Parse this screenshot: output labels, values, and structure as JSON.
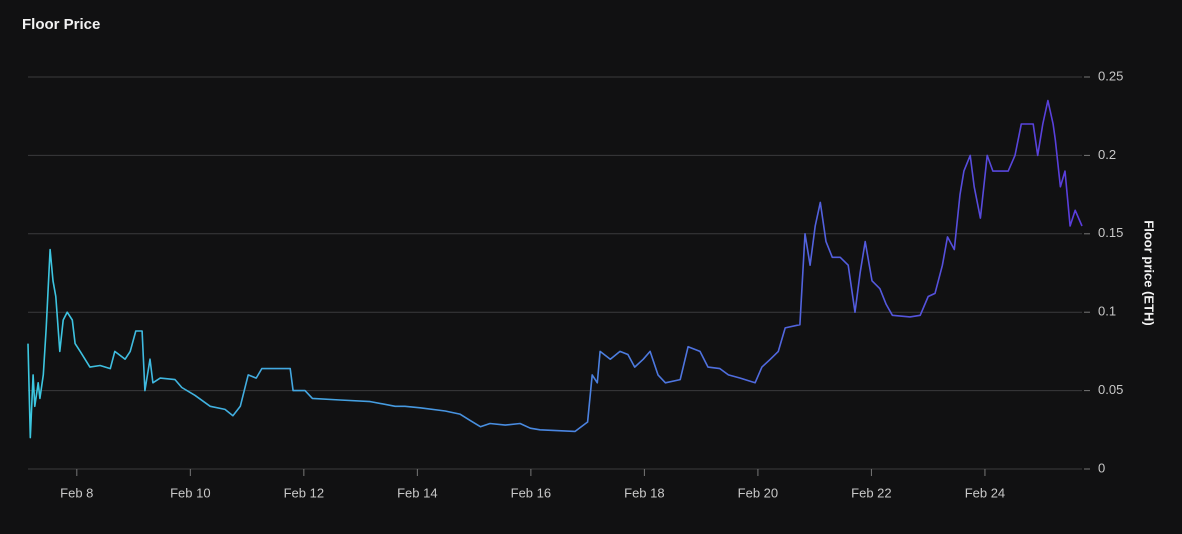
{
  "chart_data": {
    "type": "line",
    "title": "Floor Price",
    "ylabel": "Floor price (ETH)",
    "x": [
      7.14,
      7.18,
      7.23,
      7.26,
      7.32,
      7.35,
      7.41,
      7.46,
      7.53,
      7.58,
      7.63,
      7.7,
      7.76,
      7.83,
      7.92,
      7.97,
      8.06,
      8.23,
      8.41,
      8.59,
      8.67,
      8.85,
      8.94,
      9.04,
      9.15,
      9.2,
      9.29,
      9.34,
      9.47,
      9.73,
      9.85,
      10.08,
      10.35,
      10.61,
      10.75,
      10.88,
      11.02,
      11.16,
      11.26,
      11.76,
      11.81,
      12.02,
      12.15,
      12.64,
      13.17,
      13.61,
      13.78,
      14.05,
      14.49,
      14.75,
      14.93,
      15.11,
      15.28,
      15.55,
      15.81,
      15.99,
      16.16,
      16.78,
      17.0,
      17.08,
      17.17,
      17.22,
      17.4,
      17.57,
      17.71,
      17.83,
      17.98,
      18.1,
      18.24,
      18.37,
      18.63,
      18.77,
      18.98,
      19.12,
      19.33,
      19.48,
      19.69,
      19.95,
      20.07,
      20.22,
      20.36,
      20.48,
      20.74,
      20.83,
      20.92,
      21.01,
      21.1,
      21.2,
      21.31,
      21.45,
      21.59,
      21.71,
      21.8,
      21.89,
      22.01,
      22.15,
      22.26,
      22.37,
      22.68,
      22.86,
      23.0,
      23.12,
      23.25,
      23.34,
      23.46,
      23.56,
      23.63,
      23.74,
      23.81,
      23.92,
      24.04,
      24.14,
      24.41,
      24.53,
      24.64,
      24.85,
      24.93,
      25.02,
      25.11,
      25.2,
      25.24,
      25.33,
      25.41,
      25.5,
      25.59,
      25.71
    ],
    "series": [
      {
        "name": "Floor price (ETH)",
        "colors": [
          "#3cc8e0",
          "#4a86e0",
          "#5a3cdc"
        ],
        "values": [
          0.08,
          0.02,
          0.06,
          0.04,
          0.055,
          0.045,
          0.06,
          0.09,
          0.14,
          0.12,
          0.11,
          0.075,
          0.095,
          0.1,
          0.095,
          0.08,
          0.075,
          0.065,
          0.066,
          0.064,
          0.075,
          0.07,
          0.075,
          0.088,
          0.088,
          0.05,
          0.07,
          0.055,
          0.058,
          0.057,
          0.052,
          0.047,
          0.04,
          0.038,
          0.034,
          0.04,
          0.06,
          0.058,
          0.064,
          0.064,
          0.05,
          0.05,
          0.045,
          0.044,
          0.043,
          0.04,
          0.04,
          0.039,
          0.037,
          0.035,
          0.031,
          0.027,
          0.029,
          0.028,
          0.029,
          0.026,
          0.025,
          0.024,
          0.03,
          0.06,
          0.055,
          0.075,
          0.07,
          0.075,
          0.073,
          0.065,
          0.07,
          0.075,
          0.06,
          0.055,
          0.057,
          0.078,
          0.075,
          0.065,
          0.064,
          0.06,
          0.058,
          0.055,
          0.065,
          0.07,
          0.075,
          0.09,
          0.092,
          0.15,
          0.13,
          0.155,
          0.17,
          0.145,
          0.135,
          0.135,
          0.13,
          0.1,
          0.125,
          0.145,
          0.12,
          0.115,
          0.105,
          0.098,
          0.097,
          0.098,
          0.11,
          0.112,
          0.13,
          0.148,
          0.14,
          0.175,
          0.19,
          0.2,
          0.18,
          0.16,
          0.2,
          0.19,
          0.19,
          0.2,
          0.22,
          0.22,
          0.2,
          0.22,
          0.235,
          0.22,
          0.21,
          0.18,
          0.19,
          0.155,
          0.165,
          0.155
        ]
      }
    ],
    "xlim": [
      7.14,
      25.71
    ],
    "xticks": [
      {
        "value": 8,
        "label": "Feb 8"
      },
      {
        "value": 10,
        "label": "Feb 10"
      },
      {
        "value": 12,
        "label": "Feb 12"
      },
      {
        "value": 14,
        "label": "Feb 14"
      },
      {
        "value": 16,
        "label": "Feb 16"
      },
      {
        "value": 18,
        "label": "Feb 18"
      },
      {
        "value": 20,
        "label": "Feb 20"
      },
      {
        "value": 22,
        "label": "Feb 22"
      },
      {
        "value": 24,
        "label": "Feb 24"
      }
    ],
    "ylim": [
      0,
      0.25
    ],
    "yticks": [
      0,
      0.05,
      0.1,
      0.15,
      0.2,
      0.25
    ],
    "grid": true
  }
}
